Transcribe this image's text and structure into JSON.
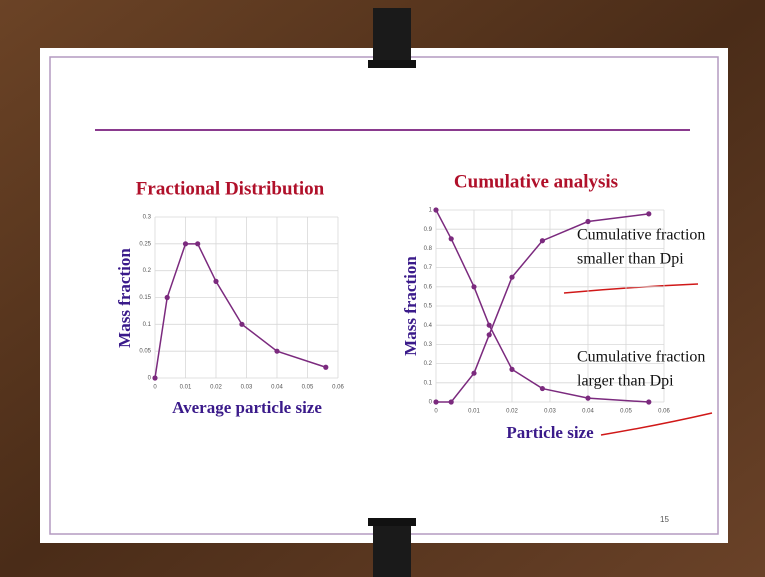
{
  "page_number": "15",
  "chart_data": [
    {
      "type": "line",
      "title": "Fractional Distribution",
      "x_label": "Average particle size",
      "y_label": "Mass fraction",
      "x": [
        0,
        0.004,
        0.01,
        0.014,
        0.02,
        0.0285,
        0.04,
        0.056
      ],
      "values": [
        0,
        0.15,
        0.25,
        0.25,
        0.18,
        0.1,
        0.05,
        0.02
      ],
      "color": "#7b2a7e",
      "xlim": [
        0,
        0.06
      ],
      "xticks": [
        0,
        0.01,
        0.02,
        0.03,
        0.04,
        0.05,
        0.06
      ],
      "ylim": [
        0,
        0.3
      ],
      "yticks": [
        0,
        0.05,
        0.1,
        0.15,
        0.2,
        0.25,
        0.3
      ],
      "grid": true
    },
    {
      "type": "line",
      "title": "Cumulative analysis",
      "x_label": "Particle size",
      "y_label": "Mass fraction",
      "x": [
        0,
        0.004,
        0.01,
        0.014,
        0.02,
        0.028,
        0.04,
        0.056
      ],
      "series": [
        {
          "color": "#7b2a7e",
          "values": [
            0,
            0,
            0.15,
            0.35,
            0.65,
            0.84,
            0.94,
            0.98
          ]
        },
        {
          "color": "#7b2a7e",
          "values": [
            1,
            0.85,
            0.6,
            0.4,
            0.17,
            0.07,
            0.02,
            0
          ]
        }
      ],
      "annotations": [
        [
          "Cumulative fraction",
          "smaller than Dpi"
        ],
        [
          "Cumulative fraction",
          "larger than Dpi"
        ]
      ],
      "xlim": [
        0,
        0.06
      ],
      "xticks": [
        0,
        0.01,
        0.02,
        0.03,
        0.04,
        0.05,
        0.06
      ],
      "ylim": [
        0,
        1
      ],
      "yticks": [
        0,
        0.1,
        0.2,
        0.3,
        0.4,
        0.5,
        0.6,
        0.7,
        0.8,
        0.9,
        1
      ],
      "grid": true
    }
  ]
}
